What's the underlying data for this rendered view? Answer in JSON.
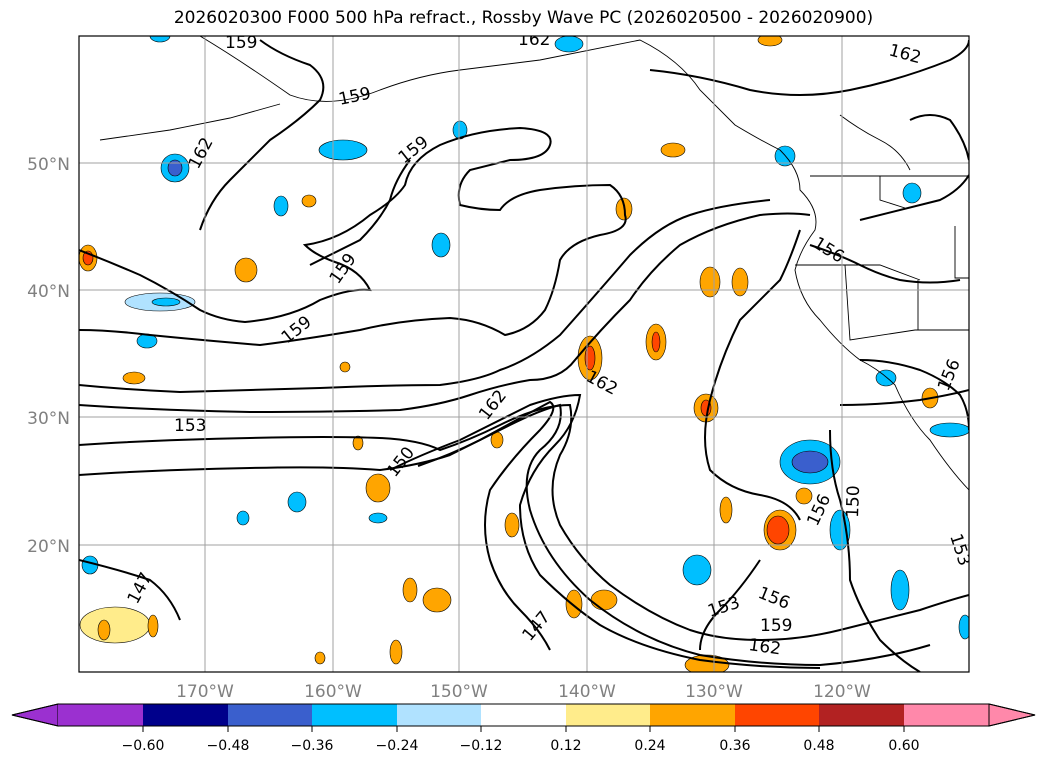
{
  "title": "2026020300 F000 500 hPa refract., Rossby Wave PC (2026020500 - 2026020900)",
  "map": {
    "lat_labels": [
      "50°N",
      "40°N",
      "30°N",
      "20°N"
    ],
    "lon_labels": [
      "170°W",
      "160°W",
      "150°W",
      "140°W",
      "130°W",
      "120°W"
    ],
    "gridline_color": "#a0a0a0",
    "tick_label_color": "#808080"
  },
  "contour_labels": [
    "159",
    "162",
    "162",
    "159",
    "162",
    "159",
    "159",
    "159",
    "153",
    "162",
    "150",
    "162",
    "156",
    "156",
    "150",
    "156",
    "153",
    "147",
    "147",
    "153",
    "156",
    "159",
    "162"
  ],
  "colorbar": {
    "tick_labels": [
      "−0.60",
      "−0.48",
      "−0.36",
      "−0.24",
      "−0.12",
      "0.12",
      "0.24",
      "0.36",
      "0.48",
      "0.60"
    ],
    "colors": [
      "#9b30d0",
      "#00008b",
      "#3a5fcd",
      "#00bfff",
      "#b0e2ff",
      "#ffffff",
      "#ffec8b",
      "#ffa500",
      "#ff4500",
      "#b22222",
      "#ff88aa"
    ]
  }
}
